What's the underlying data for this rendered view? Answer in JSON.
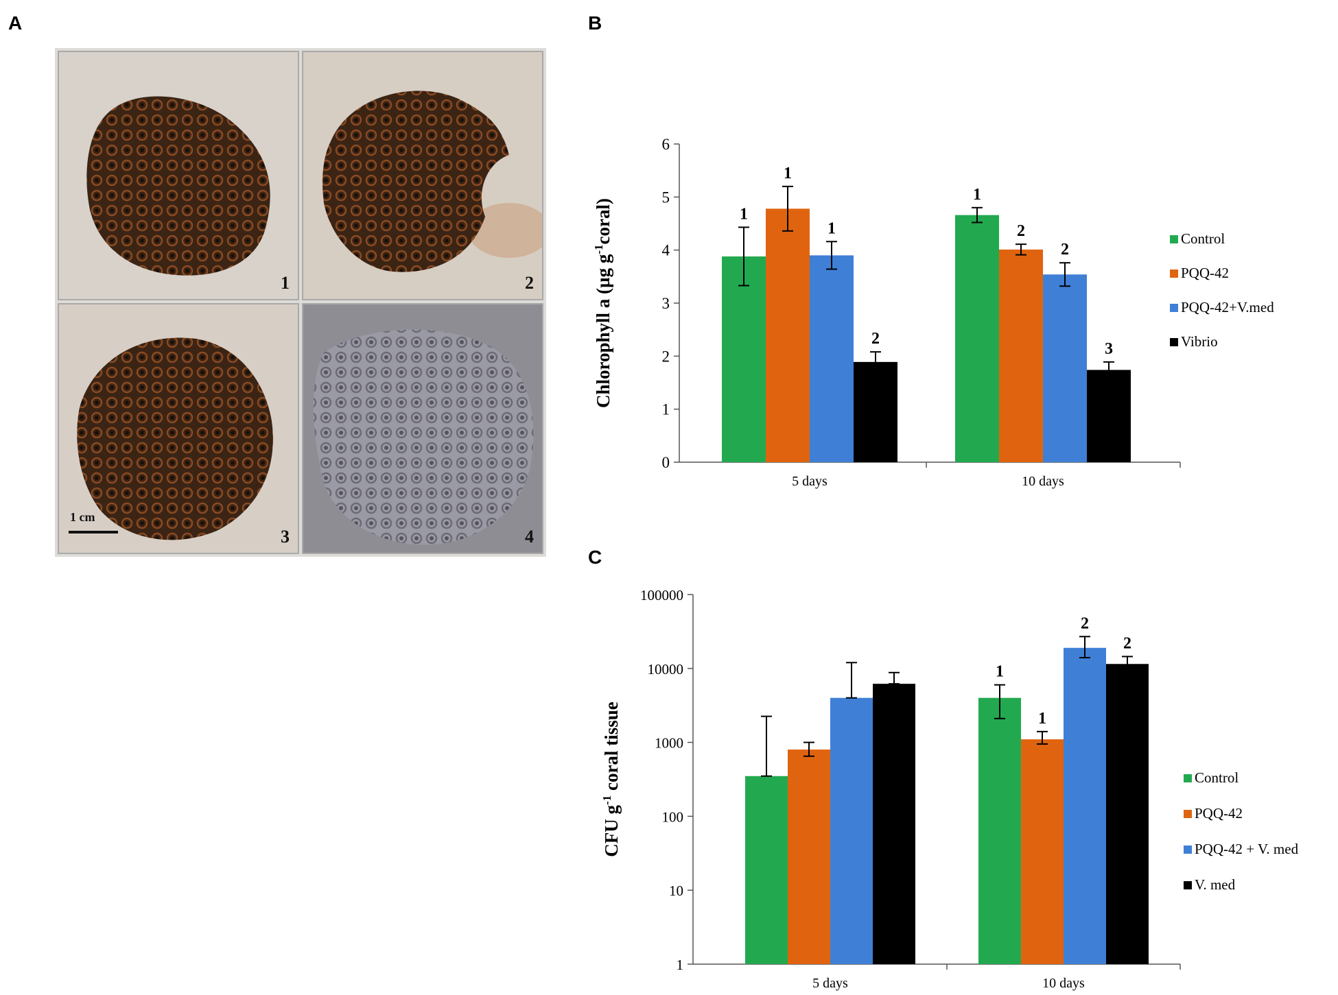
{
  "panels": {
    "a": "A",
    "b": "B",
    "c": "C"
  },
  "photos": {
    "items": [
      {
        "number": "1"
      },
      {
        "number": "2"
      },
      {
        "number": "3"
      },
      {
        "number": "4"
      }
    ],
    "scale_label": "1 cm"
  },
  "colors": {
    "control": "#22a94f",
    "pqq42": "#e0640f",
    "pqq42_vmed": "#3f7fd6",
    "vibrio": "#000000"
  },
  "chart_data": [
    {
      "type": "bar",
      "panel": "B",
      "title": "",
      "xlabel": "",
      "ylabel": "Chlorophyll a (µg g-1coral)",
      "ylim": [
        0,
        6
      ],
      "yticks": [
        "0",
        "1",
        "2",
        "3",
        "4",
        "5",
        "6"
      ],
      "categories": [
        "5 days",
        "10 days"
      ],
      "series": [
        {
          "name": "Control",
          "values": [
            3.88,
            4.66
          ],
          "errors": [
            0.55,
            0.14
          ],
          "labels": [
            "1",
            "1"
          ]
        },
        {
          "name": "PQQ-42",
          "values": [
            4.78,
            4.01
          ],
          "errors": [
            0.42,
            0.1
          ],
          "labels": [
            "1",
            "2"
          ]
        },
        {
          "name": "PQQ-42+V.med",
          "values": [
            3.9,
            3.54
          ],
          "errors": [
            0.26,
            0.22
          ],
          "labels": [
            "1",
            "2"
          ]
        },
        {
          "name": "Vibrio",
          "values": [
            1.89,
            1.74
          ],
          "errors": [
            0.19,
            0.15
          ],
          "labels": [
            "2",
            "3"
          ]
        }
      ],
      "legend_position": "right"
    },
    {
      "type": "bar",
      "panel": "C",
      "title": "",
      "xlabel": "",
      "ylabel": "CFU g-1 coral tissue",
      "yscale": "log",
      "ylim": [
        1,
        100000
      ],
      "yticks": [
        "1",
        "10",
        "100",
        "1000",
        "10000",
        "100000"
      ],
      "categories": [
        "5 days",
        "10 days"
      ],
      "series": [
        {
          "name": "Control",
          "values": [
            350,
            4000
          ],
          "errors_up": [
            2250,
            6000
          ],
          "errors_down": [
            350,
            2100
          ],
          "labels": [
            "",
            "1"
          ]
        },
        {
          "name": "PQQ-42",
          "values": [
            800,
            1100
          ],
          "errors_up": [
            1000,
            1400
          ],
          "errors_down": [
            650,
            950
          ],
          "labels": [
            "",
            "1"
          ]
        },
        {
          "name": "PQQ-42 + V. med",
          "values": [
            4000,
            19000
          ],
          "errors_up": [
            12000,
            27000
          ],
          "errors_down": [
            4000,
            14000
          ],
          "labels": [
            "",
            "2"
          ]
        },
        {
          "name": "V. med",
          "values": [
            6200,
            11500
          ],
          "errors_up": [
            8800,
            14500
          ],
          "errors_down": [
            6200,
            9500
          ],
          "labels": [
            "",
            "2"
          ]
        }
      ],
      "legend_position": "right"
    }
  ]
}
